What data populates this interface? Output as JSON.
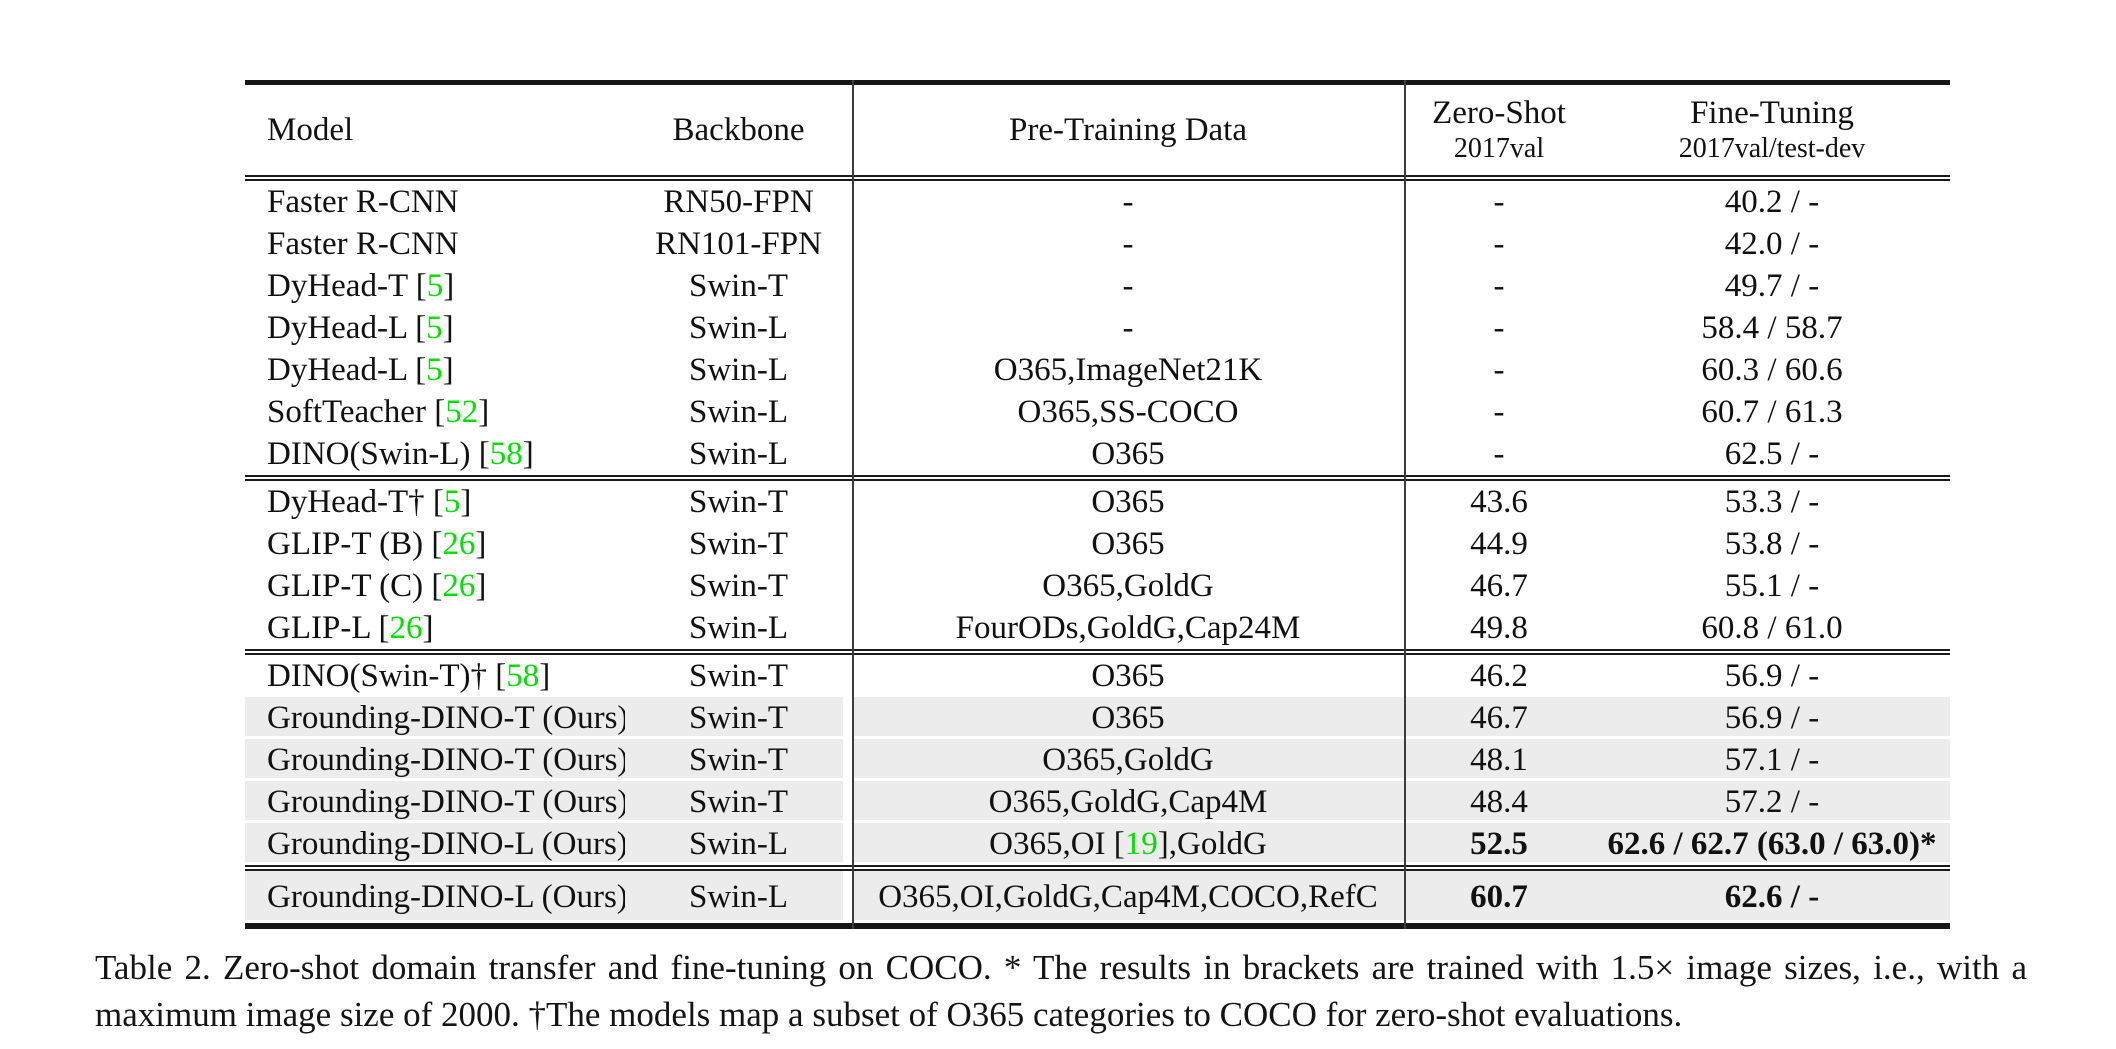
{
  "accent_green_hex": "#00E100",
  "highlight_hex": "#ECECEC",
  "table": {
    "header": {
      "model": "Model",
      "backbone": "Backbone",
      "pretrain": "Pre-Training Data",
      "zeroshot_title": "Zero-Shot",
      "zeroshot_sub": "2017val",
      "finetune_title": "Fine-Tuning",
      "finetune_sub": "2017val/test-dev"
    },
    "groups": [
      {
        "rows": [
          {
            "model": "Faster R-CNN",
            "backbone": "RN50-FPN",
            "pretrain": "-",
            "zeroshot": "-",
            "finetune": "40.2 / -",
            "highlight": false,
            "bold_zs": false,
            "bold_ft": false
          },
          {
            "model": "Faster R-CNN",
            "backbone": "RN101-FPN",
            "pretrain": "-",
            "zeroshot": "-",
            "finetune": "42.0 / -",
            "highlight": false,
            "bold_zs": false,
            "bold_ft": false
          },
          {
            "model": "DyHead-T",
            "cite": "5",
            "backbone": "Swin-T",
            "pretrain": "-",
            "zeroshot": "-",
            "finetune": "49.7 / -",
            "highlight": false,
            "bold_zs": false,
            "bold_ft": false
          },
          {
            "model": "DyHead-L",
            "cite": "5",
            "backbone": "Swin-L",
            "pretrain": "-",
            "zeroshot": "-",
            "finetune": "58.4 / 58.7",
            "highlight": false,
            "bold_zs": false,
            "bold_ft": false
          },
          {
            "model": "DyHead-L",
            "cite": "5",
            "backbone": "Swin-L",
            "pretrain": "O365,ImageNet21K",
            "zeroshot": "-",
            "finetune": "60.3 / 60.6",
            "highlight": false,
            "bold_zs": false,
            "bold_ft": false
          },
          {
            "model": "SoftTeacher",
            "cite": "52",
            "backbone": "Swin-L",
            "pretrain": "O365,SS-COCO",
            "zeroshot": "-",
            "finetune": "60.7 / 61.3",
            "highlight": false,
            "bold_zs": false,
            "bold_ft": false
          },
          {
            "model": "DINO(Swin-L)",
            "cite": "58",
            "backbone": "Swin-L",
            "pretrain": "O365",
            "zeroshot": "-",
            "finetune": "62.5 / -",
            "highlight": false,
            "bold_zs": false,
            "bold_ft": false
          }
        ]
      },
      {
        "rows": [
          {
            "model": "DyHead-T†",
            "cite": "5",
            "backbone": "Swin-T",
            "pretrain": "O365",
            "zeroshot": "43.6",
            "finetune": "53.3 / -",
            "highlight": false,
            "bold_zs": false,
            "bold_ft": false
          },
          {
            "model": "GLIP-T (B)",
            "cite": "26",
            "backbone": "Swin-T",
            "pretrain": "O365",
            "zeroshot": "44.9",
            "finetune": "53.8 / -",
            "highlight": false,
            "bold_zs": false,
            "bold_ft": false
          },
          {
            "model": "GLIP-T (C)",
            "cite": "26",
            "backbone": "Swin-T",
            "pretrain": "O365,GoldG",
            "zeroshot": "46.7",
            "finetune": "55.1 / -",
            "highlight": false,
            "bold_zs": false,
            "bold_ft": false
          },
          {
            "model": "GLIP-L",
            "cite": "26",
            "backbone": "Swin-L",
            "pretrain": "FourODs,GoldG,Cap24M",
            "zeroshot": "49.8",
            "finetune": "60.8 / 61.0",
            "highlight": false,
            "bold_zs": false,
            "bold_ft": false
          }
        ]
      },
      {
        "rows": [
          {
            "model": "DINO(Swin-T)†",
            "cite": "58",
            "backbone": "Swin-T",
            "pretrain": "O365",
            "zeroshot": "46.2",
            "finetune": "56.9 / -",
            "highlight": false,
            "bold_zs": false,
            "bold_ft": false
          },
          {
            "model": "Grounding-DINO-T (Ours)",
            "backbone": "Swin-T",
            "pretrain": "O365",
            "zeroshot": "46.7",
            "finetune": "56.9 / -",
            "highlight": true,
            "bold_zs": false,
            "bold_ft": false
          },
          {
            "model": "Grounding-DINO-T (Ours)",
            "backbone": "Swin-T",
            "pretrain": "O365,GoldG",
            "zeroshot": "48.1",
            "finetune": "57.1 / -",
            "highlight": true,
            "bold_zs": false,
            "bold_ft": false
          },
          {
            "model": "Grounding-DINO-T (Ours)",
            "backbone": "Swin-T",
            "pretrain": "O365,GoldG,Cap4M",
            "zeroshot": "48.4",
            "finetune": "57.2 / -",
            "highlight": true,
            "bold_zs": false,
            "bold_ft": false
          },
          {
            "model": "Grounding-DINO-L (Ours)",
            "backbone": "Swin-L",
            "pretrain": [
              "O365,OI [",
              {
                "g": "19"
              },
              "],GoldG"
            ],
            "zeroshot": "52.5",
            "finetune": "62.6 / 62.7 (63.0 / 63.0)*",
            "highlight": true,
            "bold_zs": true,
            "bold_ft": true
          }
        ]
      },
      {
        "tall": true,
        "rows": [
          {
            "model": "Grounding-DINO-L (Ours)",
            "backbone": "Swin-L",
            "pretrain": "O365,OI,GoldG,Cap4M,COCO,RefC",
            "zeroshot": "60.7",
            "finetune": "62.6 / -",
            "highlight": true,
            "bold_zs": true,
            "bold_ft": true
          }
        ]
      }
    ]
  },
  "caption": "Table 2.  Zero-shot domain transfer and fine-tuning on COCO. * The results in brackets are trained with 1.5× image sizes, i.e., with a maximum image size of 2000. †The models map a subset of O365 categories to COCO for zero-shot evaluations."
}
